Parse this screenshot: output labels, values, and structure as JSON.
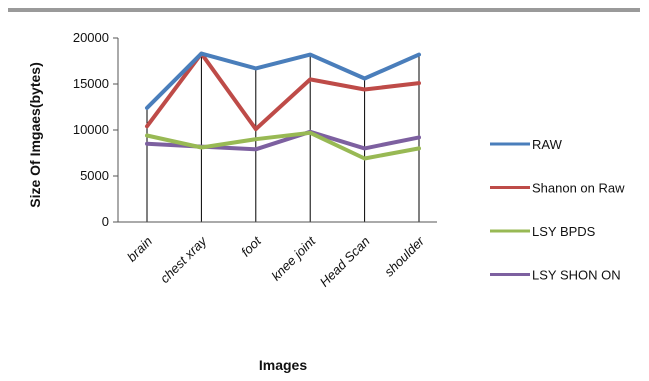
{
  "chart_data": {
    "type": "line",
    "title": "",
    "xlabel": "Images",
    "ylabel": "Size Of Imgaes(bytes)",
    "categories": [
      "brain",
      "chest xray",
      "foot",
      "knee joint",
      "Head Scan",
      "shoulder"
    ],
    "ylim": [
      0,
      20000
    ],
    "yticks": [
      0,
      5000,
      10000,
      15000,
      20000
    ],
    "grid": false,
    "drop_lines": true,
    "legend_position": "right",
    "series": [
      {
        "name": "RAW",
        "color": "#4a7ebb",
        "values": [
          12400,
          18300,
          16700,
          18200,
          15600,
          18200
        ]
      },
      {
        "name": "Shanon on Raw",
        "color": "#be4b48",
        "values": [
          10400,
          18300,
          10100,
          15500,
          14400,
          15100
        ]
      },
      {
        "name": "LSY BPDS",
        "color": "#98b954",
        "values": [
          9400,
          8100,
          9000,
          9700,
          6900,
          8000
        ]
      },
      {
        "name": "LSY SHON ON",
        "color": "#7d60a0",
        "values": [
          8500,
          8200,
          7900,
          9800,
          8000,
          9200
        ]
      }
    ]
  }
}
